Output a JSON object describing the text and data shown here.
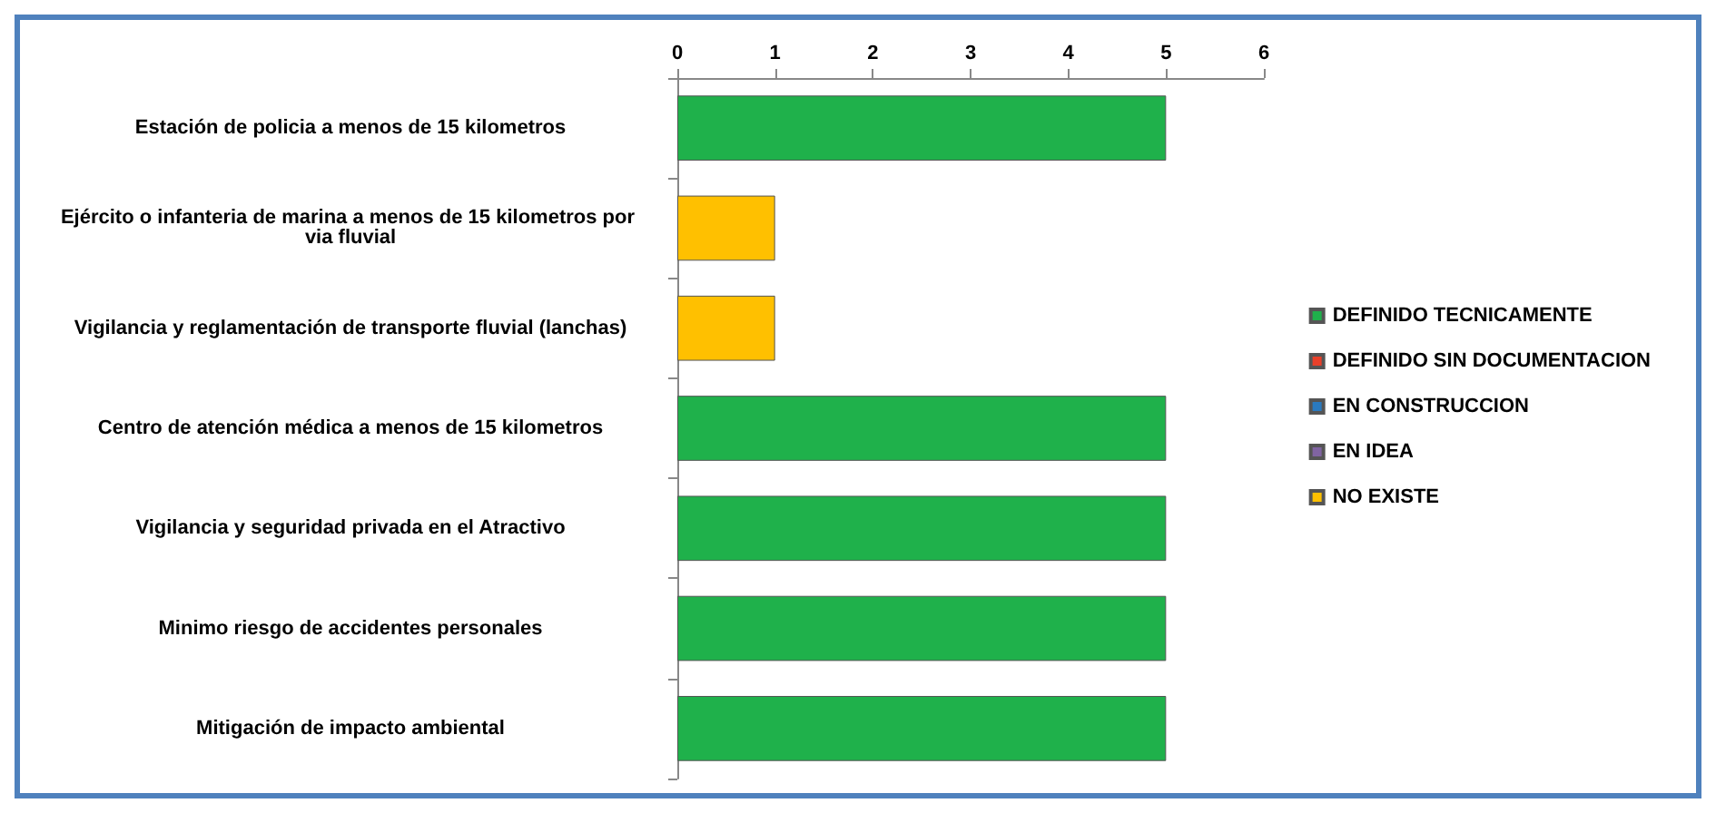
{
  "chart_data": {
    "type": "bar",
    "orientation": "horizontal",
    "stacked": true,
    "categories": [
      "Estación de policia a menos de 15 kilometros",
      "Ejército o infanteria de marina a menos de 15 kilometros por via fluvial",
      "Vigilancia y reglamentación de transporte fluvial (lanchas)",
      "Centro de atención médica a menos de 15 kilometros",
      "Vigilancia y seguridad privada en el Atractivo",
      "Minimo riesgo de accidentes personales",
      "Mitigación de impacto ambiental"
    ],
    "series": [
      {
        "name": "DEFINIDO TECNICAMENTE",
        "color": "#1fb14b",
        "values": [
          5,
          null,
          null,
          5,
          5,
          5,
          5
        ]
      },
      {
        "name": "DEFINIDO SIN DOCUMENTACION",
        "color": "#e8402a",
        "values": [
          null,
          null,
          null,
          null,
          null,
          null,
          null
        ]
      },
      {
        "name": "EN CONSTRUCCION",
        "color": "#2a7ac0",
        "values": [
          null,
          null,
          null,
          null,
          null,
          null,
          null
        ]
      },
      {
        "name": "EN IDEA",
        "color": "#8064a2",
        "values": [
          null,
          null,
          null,
          null,
          null,
          null,
          null
        ]
      },
      {
        "name": "NO EXISTE",
        "color": "#ffc000",
        "values": [
          null,
          1,
          1,
          null,
          null,
          null,
          null
        ]
      }
    ],
    "xlim": [
      0,
      6
    ],
    "xticks": [
      0,
      1,
      2,
      3,
      4,
      5,
      6
    ],
    "grid": false,
    "legend": "right"
  }
}
